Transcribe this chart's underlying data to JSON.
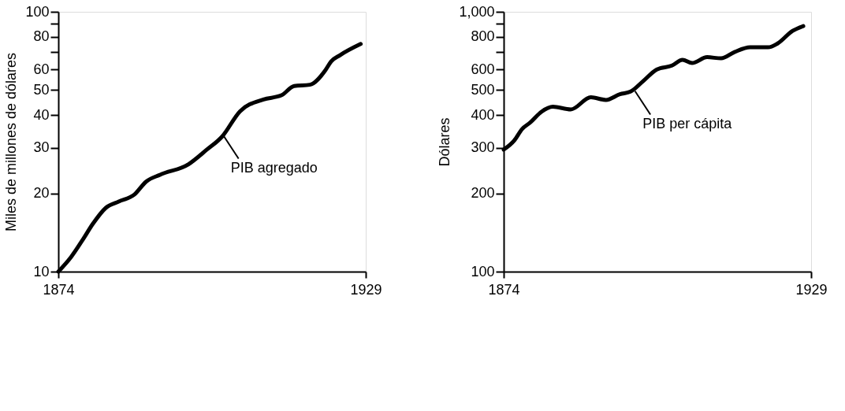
{
  "chart_data": [
    {
      "type": "line",
      "ylabel": "Miles de millones de dólares",
      "log": "y",
      "grid": false,
      "marker": "none",
      "line_style": "solid",
      "xlim": [
        1874,
        1929
      ],
      "xticks": [
        1874,
        1929
      ],
      "ylim": [
        10,
        100
      ],
      "yticks": [
        10,
        20,
        30,
        40,
        50,
        60,
        {
          "value": 70,
          "label": null
        },
        80,
        {
          "value": 90,
          "label": null
        },
        100
      ],
      "series": [
        {
          "color": "#000000",
          "x": [
            1874,
            1876.3,
            1878.4,
            1880.2,
            1882.5,
            1884.8,
            1887.6,
            1889.7,
            1892.2,
            1897.3,
            1900.5,
            1903.3,
            1906.5,
            1910.7,
            1913.9,
            1916.2,
            1919,
            1921.8,
            1922.8,
            1924.4,
            1928.1
          ],
          "values": [
            10,
            11.4,
            13.3,
            15.3,
            17.6,
            18.6,
            19.8,
            22.2,
            23.6,
            25.9,
            29.4,
            33.1,
            41.4,
            46.0,
            47.7,
            51.8,
            52.4,
            59.7,
            64.4,
            68.1,
            75.2
          ]
        }
      ],
      "annotations": [
        {
          "text": "PIB agregado",
          "x": 1903.5,
          "y": 33.5
        }
      ]
    },
    {
      "type": "line",
      "ylabel": "Dólares",
      "log": "y",
      "grid": false,
      "marker": "none",
      "line_style": "solid",
      "xlim": [
        1874,
        1929
      ],
      "xticks": [
        1874,
        1929
      ],
      "ylim": [
        100,
        1000
      ],
      "yticks": [
        100,
        200,
        300,
        400,
        500,
        600,
        {
          "value": 700,
          "label": null
        },
        800,
        {
          "value": 900,
          "label": null
        },
        {
          "value": 1000,
          "label": "1,000"
        }
      ],
      "series": [
        {
          "color": "#000000",
          "x": [
            1874,
            1875.9,
            1877.3,
            1878.7,
            1880.8,
            1882.8,
            1886.0,
            1889.6,
            1892.3,
            1894.8,
            1896.7,
            1898.9,
            1901.4,
            1904.1,
            1906.0,
            1907.7,
            1910.4,
            1912.9,
            1915.3,
            1918.1,
            1921.3,
            1923.0,
            1925.7,
            1927.6
          ],
          "values": [
            295,
            320,
            354,
            374,
            413,
            431,
            421,
            469,
            458,
            482,
            493,
            540,
            600,
            621,
            653,
            635,
            669,
            662,
            700,
            730,
            730,
            755,
            845,
            881
          ]
        }
      ],
      "annotations": [
        {
          "text": "PIB per cápita",
          "x": 1897.5,
          "y": 495
        }
      ]
    }
  ]
}
